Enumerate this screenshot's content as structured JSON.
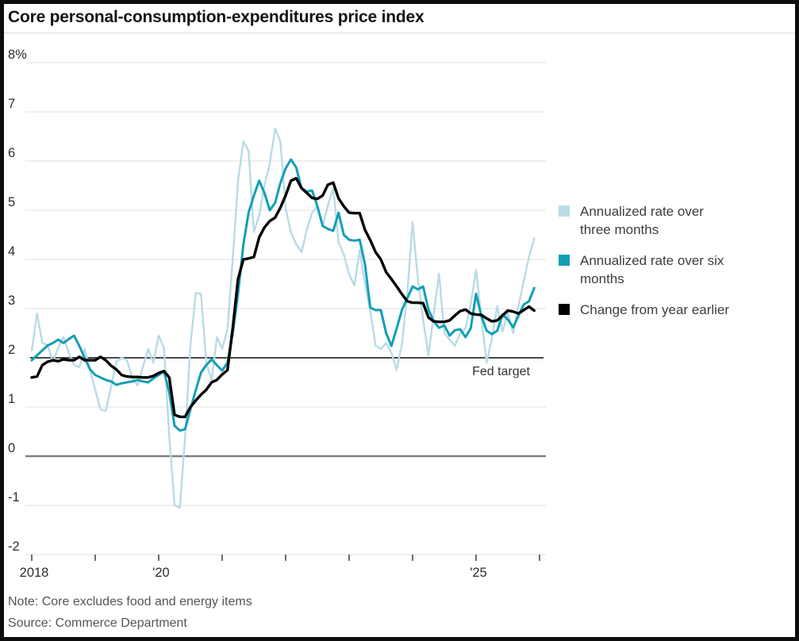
{
  "header": {
    "title": "Core personal-consumption-expenditures price index"
  },
  "footer": {
    "note": "Note: Core excludes food and energy items",
    "source": "Source: Commerce Department"
  },
  "colors": {
    "three_month": "#b9dbe5",
    "six_month": "#129fb5",
    "year_over_year": "#000000",
    "gridline": "#e7e7e7",
    "zero_line": "#7f7f7f",
    "fed_line": "#2e2e2e",
    "axis_text": "#2e2e2e",
    "tick": "#4a4a4a"
  },
  "chart_data": {
    "type": "line",
    "title": "Core personal-consumption-expenditures price index",
    "xlabel": "",
    "ylabel": "",
    "ylim": [
      -2,
      8
    ],
    "x_range_years": [
      2018,
      2026
    ],
    "grid": "horizontal",
    "legend_position": "right",
    "y_ticks": [
      {
        "v": 8,
        "label": "8%"
      },
      {
        "v": 7,
        "label": "7"
      },
      {
        "v": 6,
        "label": "6"
      },
      {
        "v": 5,
        "label": "5"
      },
      {
        "v": 4,
        "label": "4"
      },
      {
        "v": 3,
        "label": "3"
      },
      {
        "v": 2,
        "label": "2"
      },
      {
        "v": 1,
        "label": "1"
      },
      {
        "v": 0,
        "label": "0"
      },
      {
        "v": -1,
        "label": "-1"
      },
      {
        "v": -2,
        "label": "-2"
      }
    ],
    "x_ticks": [
      {
        "t": 2018,
        "label": "2018"
      },
      {
        "t": 2019,
        "label": ""
      },
      {
        "t": 2020,
        "label": "'20"
      },
      {
        "t": 2021,
        "label": ""
      },
      {
        "t": 2022,
        "label": ""
      },
      {
        "t": 2023,
        "label": ""
      },
      {
        "t": 2024,
        "label": ""
      },
      {
        "t": 2025,
        "label": "'25"
      },
      {
        "t": 2026,
        "label": ""
      }
    ],
    "fed_target": {
      "value": 2,
      "label": "Fed target"
    },
    "start": {
      "year": 2018,
      "month": 1
    },
    "frequency": "monthly",
    "series": [
      {
        "name": "Annualized rate over three months",
        "color": "#b9dbe5",
        "stroke_width": 2.4,
        "values": [
          2.15,
          2.9,
          2.3,
          2.26,
          1.92,
          2.2,
          2.42,
          2.1,
          1.85,
          1.81,
          2.18,
          1.75,
          1.35,
          0.95,
          0.92,
          1.4,
          1.92,
          2.0,
          1.95,
          1.6,
          1.44,
          1.8,
          2.18,
          1.9,
          2.45,
          2.2,
          0.4,
          -1.0,
          -1.05,
          0.4,
          2.25,
          3.32,
          3.3,
          1.9,
          1.53,
          2.42,
          2.18,
          2.58,
          4.0,
          5.6,
          6.4,
          6.2,
          4.56,
          4.9,
          5.5,
          5.95,
          6.66,
          6.4,
          5.03,
          4.55,
          4.31,
          4.15,
          4.6,
          4.95,
          5.08,
          4.68,
          5.1,
          5.45,
          4.35,
          4.1,
          3.7,
          3.47,
          4.19,
          3.5,
          2.95,
          2.25,
          2.18,
          2.3,
          2.1,
          1.75,
          2.3,
          3.3,
          4.76,
          3.6,
          2.77,
          2.05,
          2.9,
          3.71,
          2.5,
          2.37,
          2.24,
          2.5,
          2.6,
          3.1,
          3.79,
          2.8,
          1.9,
          2.4,
          3.05,
          2.53,
          2.92,
          2.5,
          3.05,
          3.55,
          4.05,
          4.43
        ]
      },
      {
        "name": "Annualized rate over six months",
        "color": "#129fb5",
        "stroke_width": 3.0,
        "values": [
          1.95,
          2.05,
          2.15,
          2.25,
          2.3,
          2.37,
          2.3,
          2.38,
          2.45,
          2.24,
          2.0,
          1.77,
          1.65,
          1.6,
          1.55,
          1.52,
          1.45,
          1.48,
          1.5,
          1.52,
          1.55,
          1.52,
          1.5,
          1.58,
          1.65,
          1.72,
          1.3,
          0.62,
          0.52,
          0.55,
          0.95,
          1.34,
          1.7,
          1.85,
          1.97,
          1.85,
          1.74,
          1.9,
          2.5,
          3.3,
          4.3,
          4.95,
          5.3,
          5.6,
          5.35,
          5.0,
          5.15,
          5.55,
          5.85,
          6.03,
          5.87,
          5.45,
          5.38,
          5.4,
          5.08,
          4.68,
          4.62,
          4.58,
          4.95,
          4.5,
          4.4,
          4.38,
          4.4,
          3.9,
          3.02,
          2.97,
          2.97,
          2.5,
          2.24,
          2.6,
          2.98,
          3.21,
          3.45,
          3.39,
          3.45,
          2.98,
          2.74,
          2.61,
          2.66,
          2.45,
          2.56,
          2.58,
          2.42,
          2.6,
          3.3,
          2.85,
          2.55,
          2.48,
          2.55,
          2.88,
          2.78,
          2.62,
          2.85,
          3.08,
          3.15,
          3.42
        ]
      },
      {
        "name": "Change from year earlier",
        "color": "#000000",
        "stroke_width": 3.4,
        "values": [
          1.6,
          1.62,
          1.85,
          1.92,
          1.95,
          1.93,
          1.97,
          1.95,
          1.95,
          2.02,
          1.95,
          1.95,
          1.95,
          2.02,
          1.95,
          1.84,
          1.76,
          1.65,
          1.62,
          1.61,
          1.61,
          1.6,
          1.6,
          1.63,
          1.69,
          1.73,
          1.6,
          0.84,
          0.8,
          0.8,
          1.0,
          1.13,
          1.25,
          1.35,
          1.5,
          1.55,
          1.66,
          1.75,
          2.6,
          3.6,
          4.0,
          4.02,
          4.05,
          4.45,
          4.65,
          4.78,
          4.85,
          5.05,
          5.3,
          5.6,
          5.65,
          5.45,
          5.35,
          5.25,
          5.23,
          5.3,
          5.52,
          5.56,
          5.24,
          5.08,
          4.95,
          4.94,
          4.94,
          4.6,
          4.39,
          4.15,
          4.0,
          3.74,
          3.6,
          3.45,
          3.29,
          3.15,
          3.12,
          3.12,
          3.11,
          2.82,
          2.74,
          2.73,
          2.73,
          2.76,
          2.86,
          2.95,
          2.98,
          2.9,
          2.88,
          2.87,
          2.8,
          2.74,
          2.76,
          2.86,
          2.96,
          2.94,
          2.9,
          2.97,
          3.04,
          2.96
        ]
      }
    ],
    "legend": [
      {
        "color": "#b9dbe5",
        "lines": [
          "Annualized rate over",
          "three months"
        ]
      },
      {
        "color": "#129fb5",
        "lines": [
          "Annualized rate over six",
          "months"
        ]
      },
      {
        "color": "#000000",
        "lines": [
          "Change from year earlier"
        ]
      }
    ]
  }
}
